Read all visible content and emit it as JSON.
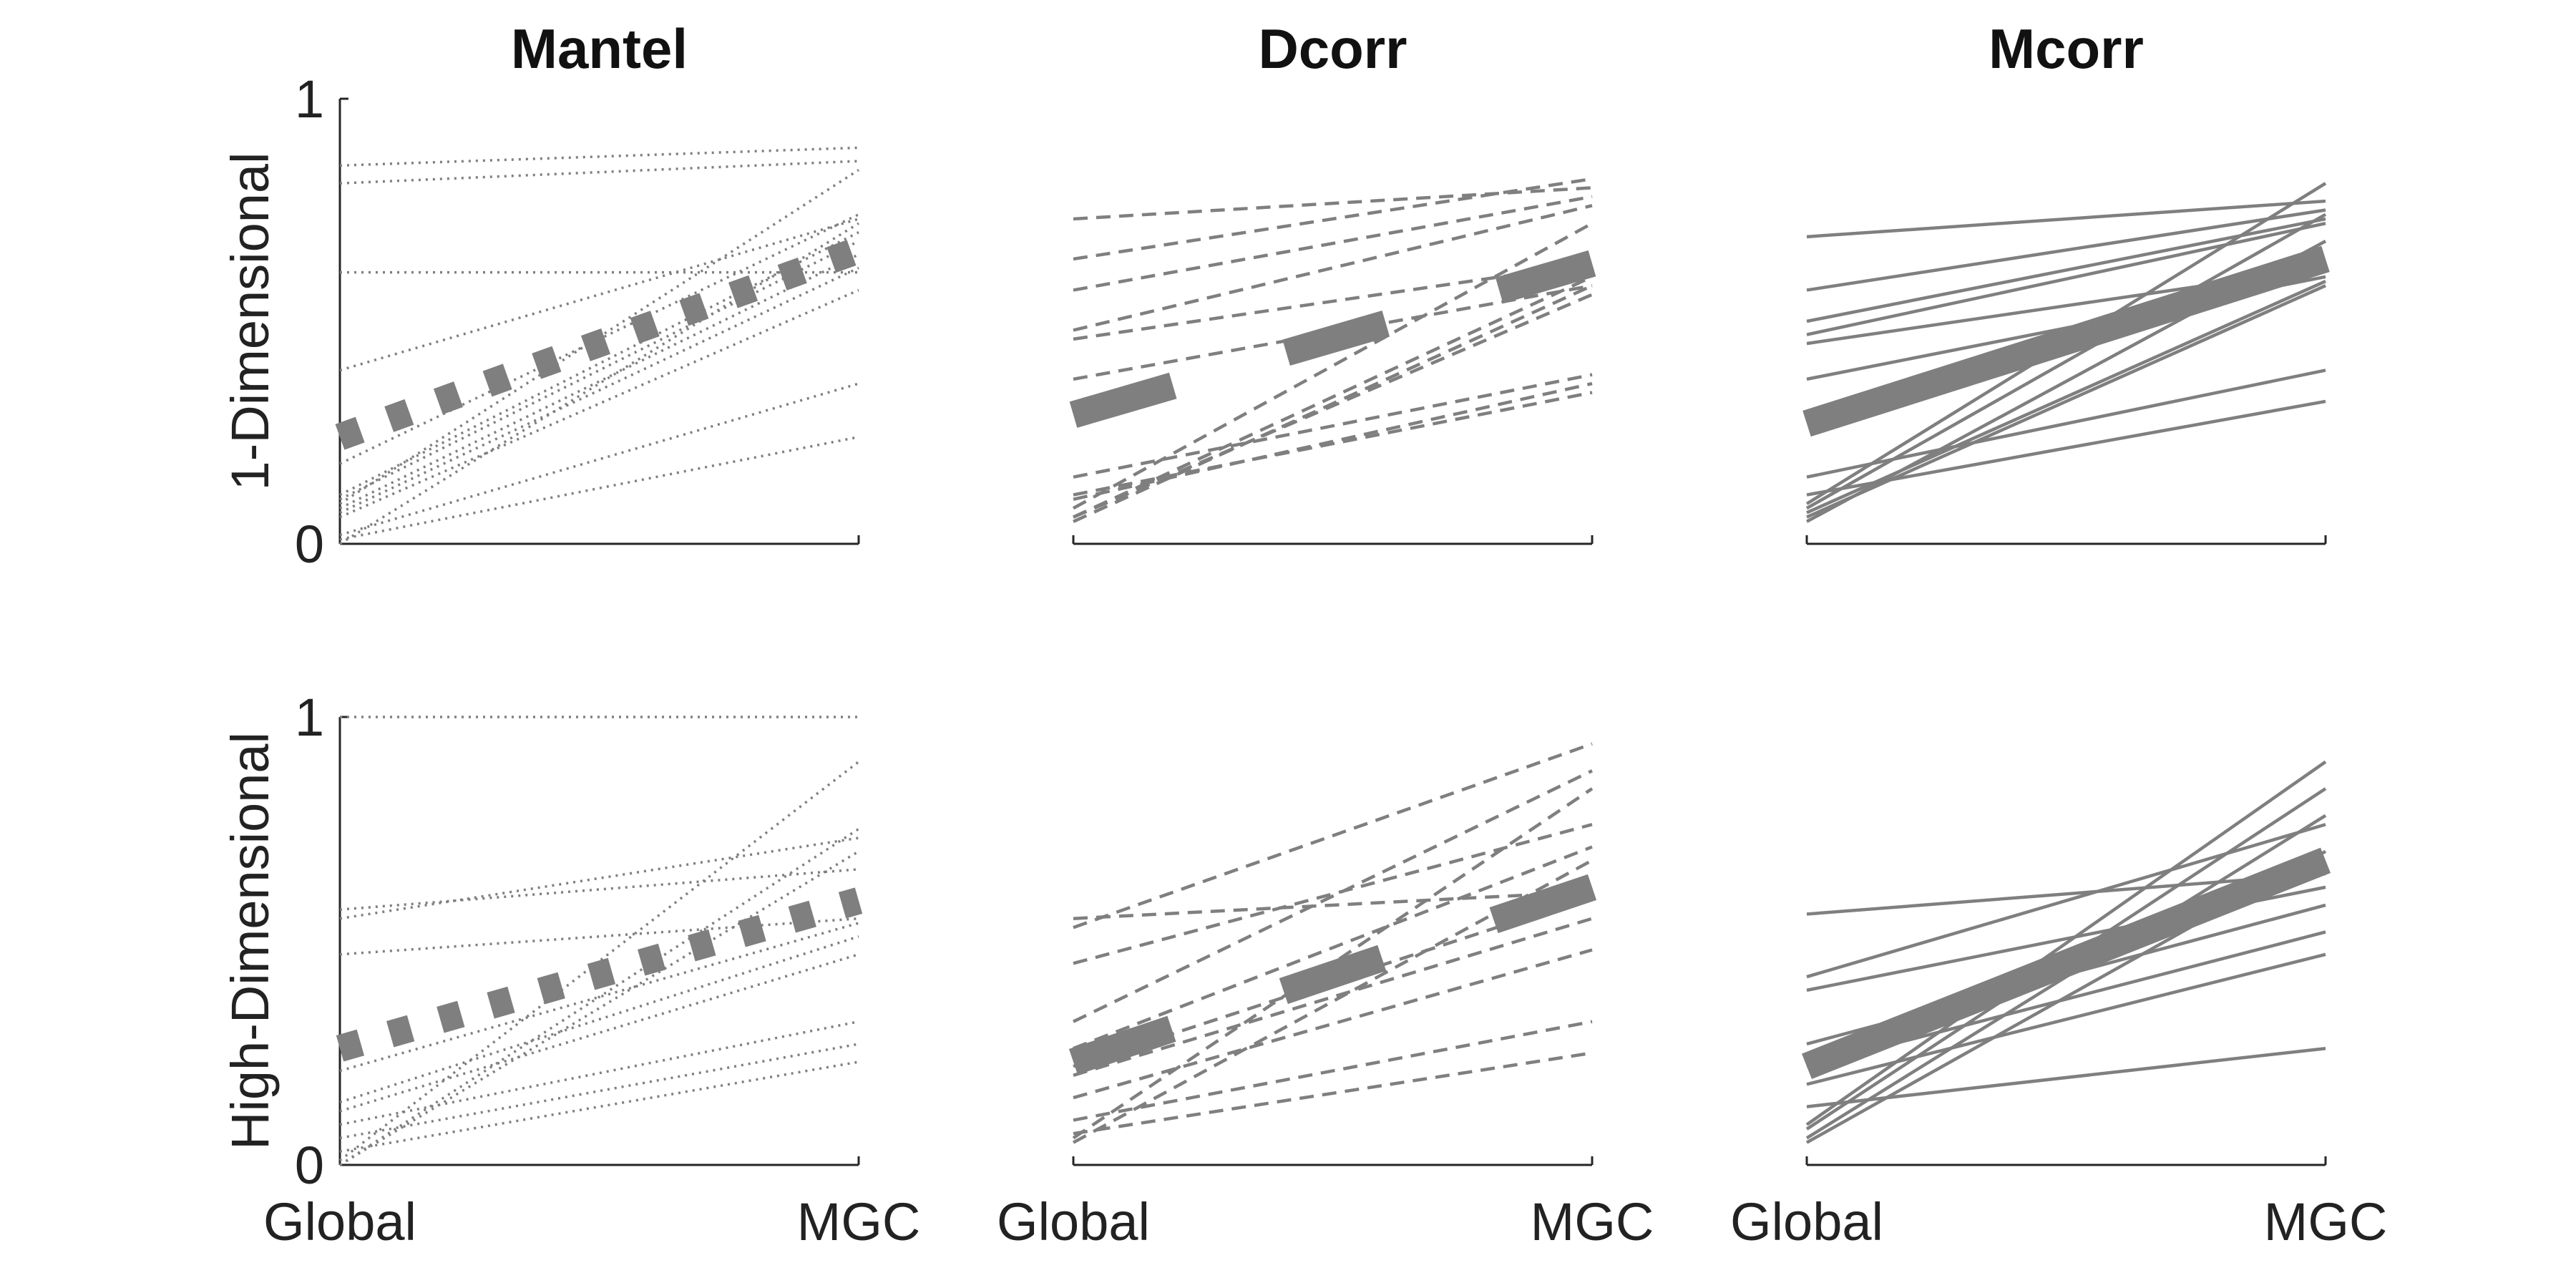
{
  "colors": {
    "line": "#7f7f7f",
    "axis": "#262626",
    "text": "#111111"
  },
  "row_labels": [
    "1-Dimensional",
    "High-Dimensional"
  ],
  "column_titles": [
    "Mantel",
    "Dcorr",
    "Mcorr"
  ],
  "chart_data": [
    {
      "type": "line",
      "title": "Mantel",
      "ylabel": "1-Dimensional",
      "style": "dotted",
      "categories": [
        "Global",
        "MGC"
      ],
      "ylim": [
        0,
        1
      ],
      "yticks": [
        "0",
        "1"
      ],
      "show_yticks": true,
      "show_xticks": false,
      "series": [
        {
          "values": [
            0.85,
            0.89
          ]
        },
        {
          "values": [
            0.81,
            0.86
          ]
        },
        {
          "values": [
            0.61,
            0.61
          ]
        },
        {
          "values": [
            0.39,
            0.73
          ]
        },
        {
          "values": [
            0.18,
            0.74
          ]
        },
        {
          "values": [
            0.11,
            0.7
          ]
        },
        {
          "values": [
            0.1,
            0.68
          ]
        },
        {
          "values": [
            0.09,
            0.84
          ]
        },
        {
          "values": [
            0.08,
            0.65
          ]
        },
        {
          "values": [
            0.07,
            0.62
          ]
        },
        {
          "values": [
            0.06,
            0.57
          ]
        },
        {
          "values": [
            0.02,
            0.36
          ]
        },
        {
          "values": [
            0.01,
            0.24
          ]
        },
        {
          "values": [
            0.0,
            0.72
          ]
        }
      ],
      "mean": [
        0.24,
        0.66
      ]
    },
    {
      "type": "line",
      "title": "Dcorr",
      "style": "dashed",
      "categories": [
        "Global",
        "MGC"
      ],
      "ylim": [
        0,
        1
      ],
      "yticks": [],
      "show_yticks": false,
      "show_xticks": false,
      "series": [
        {
          "values": [
            0.73,
            0.8
          ]
        },
        {
          "values": [
            0.64,
            0.82
          ]
        },
        {
          "values": [
            0.57,
            0.78
          ]
        },
        {
          "values": [
            0.48,
            0.76
          ]
        },
        {
          "values": [
            0.46,
            0.63
          ]
        },
        {
          "values": [
            0.37,
            0.58
          ]
        },
        {
          "values": [
            0.15,
            0.38
          ]
        },
        {
          "values": [
            0.11,
            0.34
          ]
        },
        {
          "values": [
            0.1,
            0.36
          ]
        },
        {
          "values": [
            0.08,
            0.72
          ]
        },
        {
          "values": [
            0.06,
            0.6
          ]
        },
        {
          "values": [
            0.05,
            0.58
          ]
        },
        {
          "values": [
            0.06,
            0.56
          ]
        }
      ],
      "mean": [
        0.29,
        0.63
      ]
    },
    {
      "type": "line",
      "title": "Mcorr",
      "style": "solid",
      "categories": [
        "Global",
        "MGC"
      ],
      "ylim": [
        0,
        1
      ],
      "yticks": [],
      "show_yticks": false,
      "show_xticks": false,
      "series": [
        {
          "values": [
            0.69,
            0.77
          ]
        },
        {
          "values": [
            0.57,
            0.75
          ]
        },
        {
          "values": [
            0.5,
            0.73
          ]
        },
        {
          "values": [
            0.47,
            0.72
          ]
        },
        {
          "values": [
            0.45,
            0.62
          ]
        },
        {
          "values": [
            0.37,
            0.6
          ]
        },
        {
          "values": [
            0.15,
            0.39
          ]
        },
        {
          "values": [
            0.11,
            0.32
          ]
        },
        {
          "values": [
            0.09,
            0.81
          ]
        },
        {
          "values": [
            0.08,
            0.74
          ]
        },
        {
          "values": [
            0.06,
            0.58
          ]
        },
        {
          "values": [
            0.05,
            0.68
          ]
        },
        {
          "values": [
            0.07,
            0.59
          ]
        }
      ],
      "mean": [
        0.27,
        0.64
      ]
    },
    {
      "type": "line",
      "ylabel": "High-Dimensional",
      "style": "dotted",
      "categories": [
        "Global",
        "MGC"
      ],
      "ylim": [
        0,
        1
      ],
      "yticks": [
        "0",
        "1"
      ],
      "show_yticks": true,
      "show_xticks": true,
      "series": [
        {
          "values": [
            1.0,
            1.0
          ]
        },
        {
          "values": [
            0.57,
            0.66
          ]
        },
        {
          "values": [
            0.55,
            0.73
          ]
        },
        {
          "values": [
            0.47,
            0.55
          ]
        },
        {
          "values": [
            0.21,
            0.54
          ]
        },
        {
          "values": [
            0.14,
            0.51
          ]
        },
        {
          "values": [
            0.12,
            0.47
          ]
        },
        {
          "values": [
            0.09,
            0.32
          ]
        },
        {
          "values": [
            0.06,
            0.27
          ]
        },
        {
          "values": [
            0.03,
            0.23
          ]
        },
        {
          "values": [
            0.01,
            0.9
          ]
        },
        {
          "values": [
            0.0,
            0.75
          ]
        },
        {
          "values": [
            0.0,
            0.7
          ]
        }
      ],
      "mean": [
        0.26,
        0.59
      ]
    },
    {
      "type": "line",
      "style": "dashed",
      "categories": [
        "Global",
        "MGC"
      ],
      "ylim": [
        0,
        1
      ],
      "yticks": [],
      "show_yticks": false,
      "show_xticks": true,
      "series": [
        {
          "values": [
            0.55,
            0.61
          ]
        },
        {
          "values": [
            0.53,
            0.94
          ]
        },
        {
          "values": [
            0.45,
            0.76
          ]
        },
        {
          "values": [
            0.32,
            0.88
          ]
        },
        {
          "values": [
            0.26,
            0.71
          ]
        },
        {
          "values": [
            0.22,
            0.6
          ]
        },
        {
          "values": [
            0.2,
            0.55
          ]
        },
        {
          "values": [
            0.15,
            0.48
          ]
        },
        {
          "values": [
            0.1,
            0.32
          ]
        },
        {
          "values": [
            0.07,
            0.25
          ]
        },
        {
          "values": [
            0.06,
            0.84
          ]
        },
        {
          "values": [
            0.05,
            0.68
          ]
        }
      ],
      "mean": [
        0.23,
        0.62
      ]
    },
    {
      "type": "line",
      "style": "solid",
      "categories": [
        "Global",
        "MGC"
      ],
      "ylim": [
        0,
        1
      ],
      "yticks": [],
      "show_yticks": false,
      "show_xticks": true,
      "series": [
        {
          "values": [
            0.56,
            0.65
          ]
        },
        {
          "values": [
            0.42,
            0.76
          ]
        },
        {
          "values": [
            0.39,
            0.62
          ]
        },
        {
          "values": [
            0.27,
            0.58
          ]
        },
        {
          "values": [
            0.22,
            0.52
          ]
        },
        {
          "values": [
            0.18,
            0.47
          ]
        },
        {
          "values": [
            0.13,
            0.26
          ]
        },
        {
          "values": [
            0.09,
            0.9
          ]
        },
        {
          "values": [
            0.08,
            0.84
          ]
        },
        {
          "values": [
            0.06,
            0.78
          ]
        },
        {
          "values": [
            0.05,
            0.7
          ]
        }
      ],
      "mean": [
        0.22,
        0.68
      ]
    }
  ]
}
